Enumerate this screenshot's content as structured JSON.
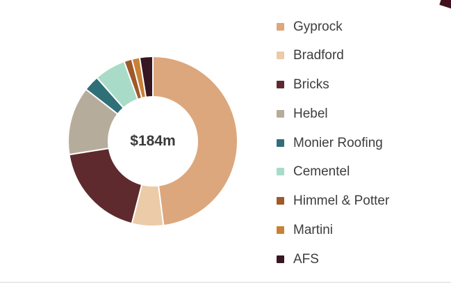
{
  "chart_data": {
    "type": "pie",
    "subtype": "donut",
    "title": "",
    "center_label": "$184m",
    "legend_position": "right",
    "start_angle_deg": 0,
    "direction": "clockwise",
    "segments": [
      {
        "label": "Gyprock",
        "value": 48.0,
        "color": "#DCA77C"
      },
      {
        "label": "Bradford",
        "value": 6.0,
        "color": "#EBCBA8"
      },
      {
        "label": "Bricks",
        "value": 18.5,
        "color": "#5E2A2E"
      },
      {
        "label": "Hebel",
        "value": 13.0,
        "color": "#B6AC9C"
      },
      {
        "label": "Monier Roofing",
        "value": 3.0,
        "color": "#2F6F78"
      },
      {
        "label": "Cementel",
        "value": 6.0,
        "color": "#A9DCC8"
      },
      {
        "label": "Himmel & Potter",
        "value": 1.5,
        "color": "#A0592A"
      },
      {
        "label": "Martini",
        "value": 1.5,
        "color": "#C98136"
      },
      {
        "label": "AFS",
        "value": 2.5,
        "color": "#371721"
      }
    ]
  }
}
